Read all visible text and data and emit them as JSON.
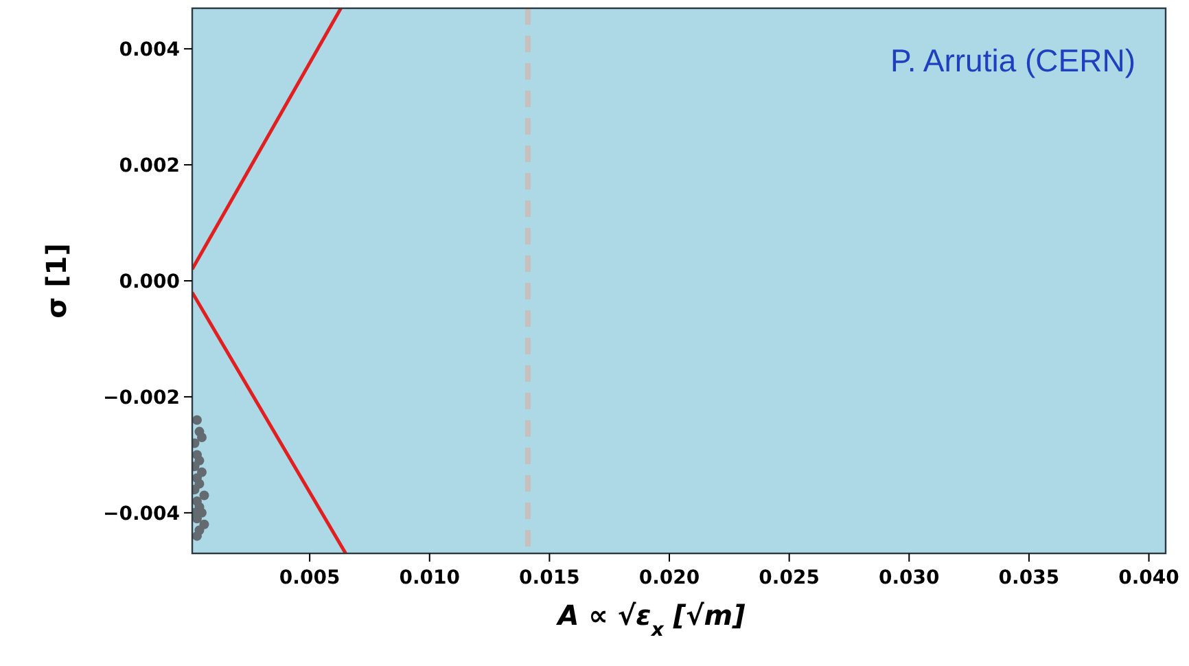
{
  "chart_data": {
    "type": "scatter",
    "xlabel": "A ∝ √ε$_{x}$ [√m]",
    "ylabel": "σ [1]",
    "annotations": [
      "P. Arrutia (CERN)"
    ],
    "xlim": [
      0.0001,
      0.0407
    ],
    "xticks": [
      0.005,
      {
        "value": 0.01,
        "label": "0.010"
      },
      0.015,
      {
        "value": 0.02,
        "label": "0.020"
      },
      0.025,
      {
        "value": 0.03,
        "label": "0.030"
      },
      0.035,
      {
        "value": 0.04,
        "label": "0.040"
      }
    ],
    "ylim": [
      -0.0047,
      0.0047
    ],
    "yticks": [
      -0.004,
      -0.002,
      {
        "value": 0,
        "label": "0.000"
      },
      0.002,
      0.004
    ],
    "grid": false,
    "series": [
      {
        "type": "line",
        "color": "#e02020",
        "x": [
          0.0001,
          0.0063
        ],
        "values": [
          0.0002,
          0.0047
        ],
        "line_style": "solid"
      },
      {
        "type": "line",
        "color": "#e02020",
        "x": [
          0.0001,
          0.0065
        ],
        "values": [
          -0.0002,
          -0.0047
        ],
        "line_style": "solid"
      },
      {
        "color": "#636b70",
        "marker": "circle",
        "x": [
          0.0003,
          0.0004,
          0.0002,
          0.0005,
          0.0003,
          0.0004,
          0.0002,
          0.0005,
          0.0003,
          0.0004,
          0.0002,
          0.0006,
          0.0003,
          0.0004,
          0.0002,
          0.0005,
          0.0003,
          0.0006,
          0.0004,
          0.0003
        ],
        "values": [
          -0.0024,
          -0.0026,
          -0.0028,
          -0.0027,
          -0.003,
          -0.0031,
          -0.0032,
          -0.0033,
          -0.0034,
          -0.0035,
          -0.0036,
          -0.0037,
          -0.0038,
          -0.0039,
          -0.004,
          -0.004,
          -0.0041,
          -0.0042,
          -0.0043,
          -0.0044
        ]
      }
    ],
    "ref_lines": [
      {
        "axis": "x",
        "value": 0.0141,
        "color": "#c8c0bc",
        "line_style": "dashed"
      }
    ]
  }
}
